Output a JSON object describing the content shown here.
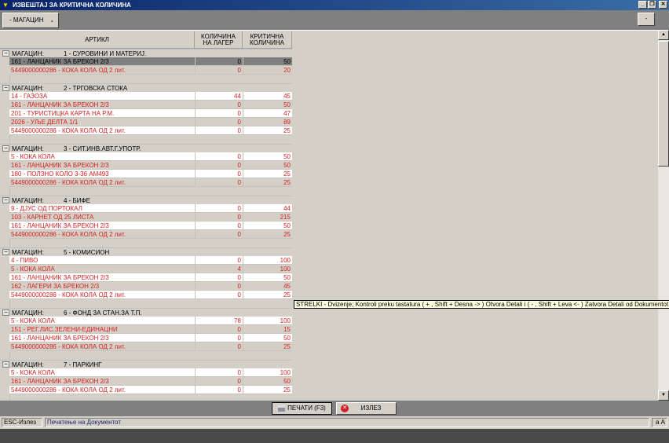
{
  "window": {
    "title": "ИЗВЕШТАЈ ЗА КРИТИЧНА КОЛИЧИНА",
    "minimize": "_",
    "restore": "❐",
    "close": "✕"
  },
  "toolbar": {
    "group_button": "- МАГАЦИН",
    "sort_arrow": "▲",
    "collapse_button": "-"
  },
  "columns": {
    "article": "АРТИКЛ",
    "qty_line1": "КОЛИЧИНА",
    "qty_line2": "НА ЛАГЕР",
    "crit_line1": "КРИТИЧНА",
    "crit_line2": "КОЛИЧИНА"
  },
  "group_label": "МАГАЦИН:",
  "groups": [
    {
      "name": "1 - СУРОВИНИ И МАТЕРИЈ.",
      "rows": [
        [
          "161 - ЛАНЦАНИК ЗА БРЕКОН 2/3",
          "0",
          "50"
        ],
        [
          "5449000000286 - КОКА КОЛА ОД 2 лит.",
          "0",
          "20"
        ]
      ],
      "selected_row": 0
    },
    {
      "name": "2 - ТРГОВСКА СТОКА",
      "rows": [
        [
          "14 - ГАЗОЗА",
          "44",
          "45"
        ],
        [
          "161 - ЛАНЦАНИК ЗА БРЕКОН 2/3",
          "0",
          "50"
        ],
        [
          "201 - ТУРИСТИЦКА КАРТА НА Р.М.",
          "0",
          "47"
        ],
        [
          "2026 - УЉЕ ДЕЛТА 1/1",
          "0",
          "89"
        ],
        [
          "5449000000286 - КОКА КОЛА ОД 2 лит.",
          "0",
          "25"
        ]
      ]
    },
    {
      "name": "3 - СИТ.ИНВ.АВТ.Г.УПОТР.",
      "rows": [
        [
          "5 - КОКА КОЛА",
          "0",
          "50"
        ],
        [
          "161 - ЛАНЦАНИК ЗА БРЕКОН 2/3",
          "0",
          "50"
        ],
        [
          "180 - ПОЛЗНО КОЛО 3-36 АМ493",
          "0",
          "25"
        ],
        [
          "5449000000286 - КОКА КОЛА ОД 2 лит.",
          "0",
          "25"
        ]
      ]
    },
    {
      "name": "4 - БИФЕ",
      "rows": [
        [
          "9 - ДЈУС ОД ПОРТОКАЛ",
          "0",
          "44"
        ],
        [
          "103 - КАРНЕТ ОД 25 ЛИСТА",
          "0",
          "215"
        ],
        [
          "161 - ЛАНЦАНИК ЗА БРЕКОН 2/3",
          "0",
          "50"
        ],
        [
          "5449000000286 - КОКА КОЛА ОД 2 лит.",
          "0",
          "25"
        ]
      ]
    },
    {
      "name": "5 - КОМИСИОН",
      "rows": [
        [
          "4 - ПИВО",
          "0",
          "100"
        ],
        [
          "5 - КОКА КОЛА",
          "4",
          "100"
        ],
        [
          "161 - ЛАНЦАНИК ЗА БРЕКОН 2/3",
          "0",
          "50"
        ],
        [
          "162 - ЛАГЕРИ ЗА БРЕКОН 2/3",
          "0",
          "45"
        ],
        [
          "5449000000286 - КОКА КОЛА ОД 2 лит.",
          "0",
          "25"
        ]
      ]
    },
    {
      "name": "6 - ФОНД ЗА СТАН.ЗА Т.П.",
      "rows": [
        [
          "5 - КОКА КОЛА",
          "78",
          "100"
        ],
        [
          "151 - РЕГ.ЛИС.ЗЕЛЕНИ-ЕДИНАЦНИ",
          "0",
          "15"
        ],
        [
          "161 - ЛАНЦАНИК ЗА БРЕКОН 2/3",
          "0",
          "50"
        ],
        [
          "5449000000286 - КОКА КОЛА ОД 2 лит.",
          "0",
          "25"
        ]
      ]
    },
    {
      "name": "7 - ПАРКИНГ",
      "rows": [
        [
          "5 - КОКА КОЛА",
          "0",
          "100"
        ],
        [
          "161 - ЛАНЦАНИК ЗА БРЕКОН 2/3",
          "0",
          "50"
        ],
        [
          "5449000000286 - КОКА КОЛА ОД 2 лит.",
          "0",
          "25"
        ]
      ]
    }
  ],
  "tooltip": "STRELKI - Dvizenje; Kontroli preku tastatura ( + , Shift + Desna -> ) Otvora Detali i (  -  ,  Shift + Leva <- ) Zatvora Detali od Dokumentot",
  "buttons": {
    "print": "ПЕЧАТИ (F3)",
    "exit": "ИЗЛЕЗ"
  },
  "status": {
    "left": "ESC-Излез",
    "message": "Печатење на Документот",
    "right": "а А"
  },
  "colors": {
    "critical_text": "#d42020",
    "selected_row": "#808080",
    "title_bar": "#0a246a"
  }
}
